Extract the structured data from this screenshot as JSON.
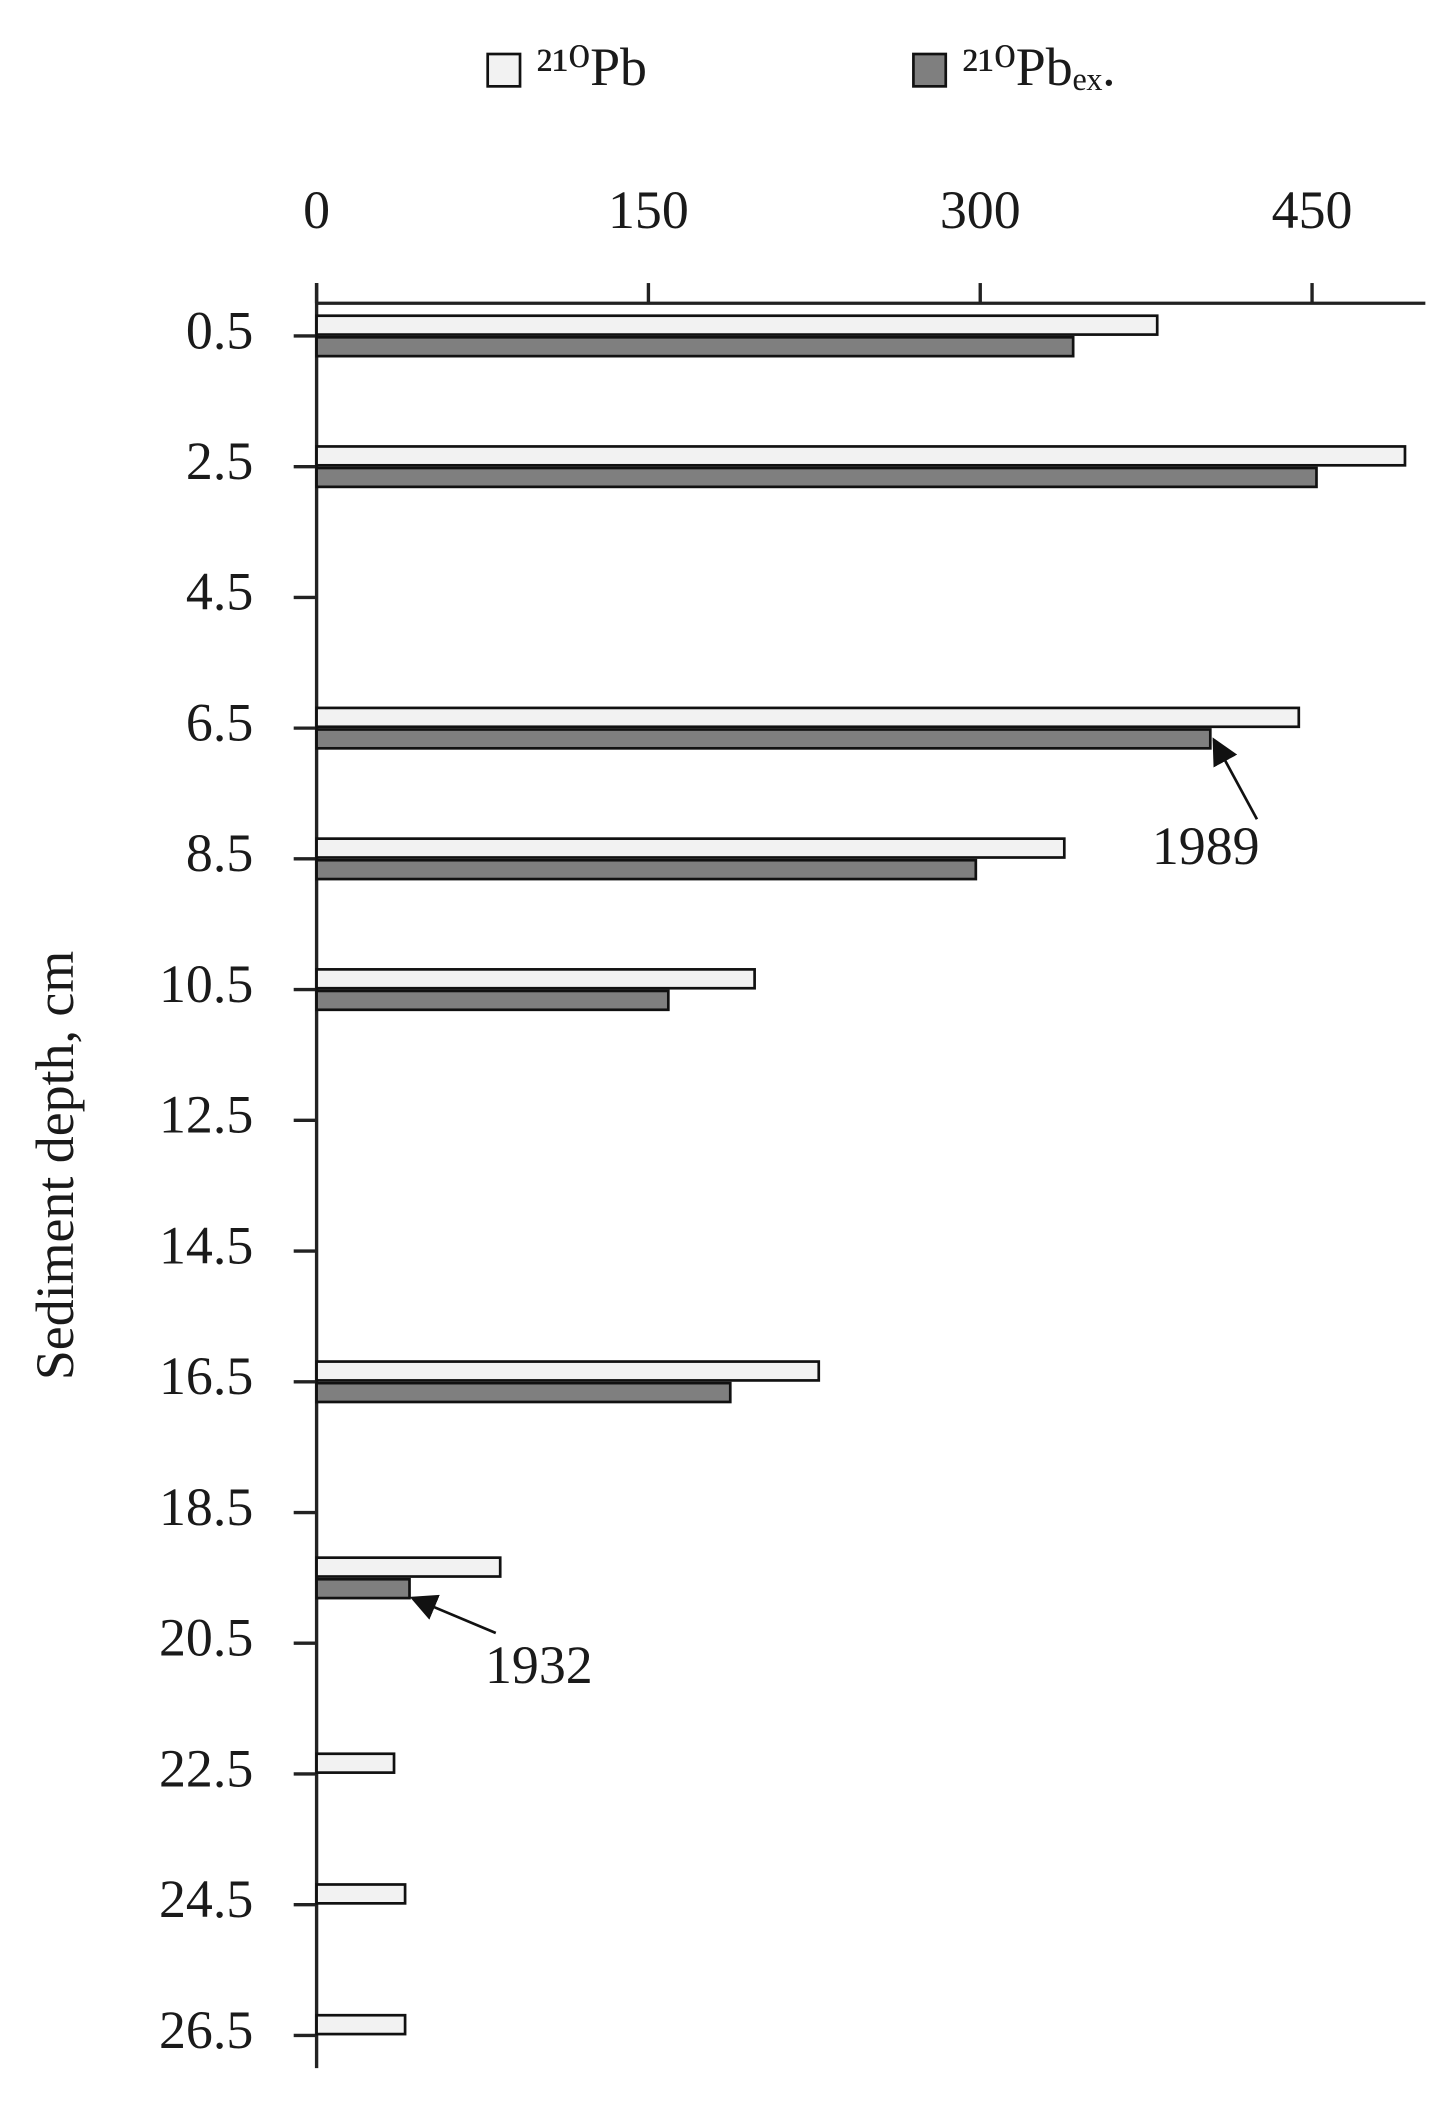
{
  "chart_data": {
    "type": "bar",
    "orientation": "horizontal",
    "y_label": "Sediment depth, cm",
    "y": [
      0.5,
      2.5,
      6.5,
      8.5,
      10.5,
      16.5,
      19.5,
      22.5,
      24.5,
      26.5
    ],
    "series": [
      {
        "name": "²¹⁰Pb",
        "color": "#f2f2f2",
        "values": [
          380,
          492,
          444,
          338,
          198,
          227,
          83,
          35,
          40,
          40
        ]
      },
      {
        "name": "²¹⁰Pbₑₓ.",
        "color": "#7f7f7f",
        "values": [
          342,
          452,
          404,
          298,
          159,
          187,
          42,
          null,
          null,
          null
        ]
      }
    ],
    "xlim": [
      0,
      500
    ],
    "xticks": [
      0,
      150,
      300,
      450
    ],
    "ylim": [
      0,
      27
    ],
    "yticks": [
      0.5,
      2.5,
      4.5,
      6.5,
      8.5,
      10.5,
      12.5,
      14.5,
      16.5,
      18.5,
      20.5,
      22.5,
      24.5,
      26.5
    ],
    "annotations": [
      "1989",
      "1932"
    ],
    "legend": "top",
    "grid": false
  }
}
